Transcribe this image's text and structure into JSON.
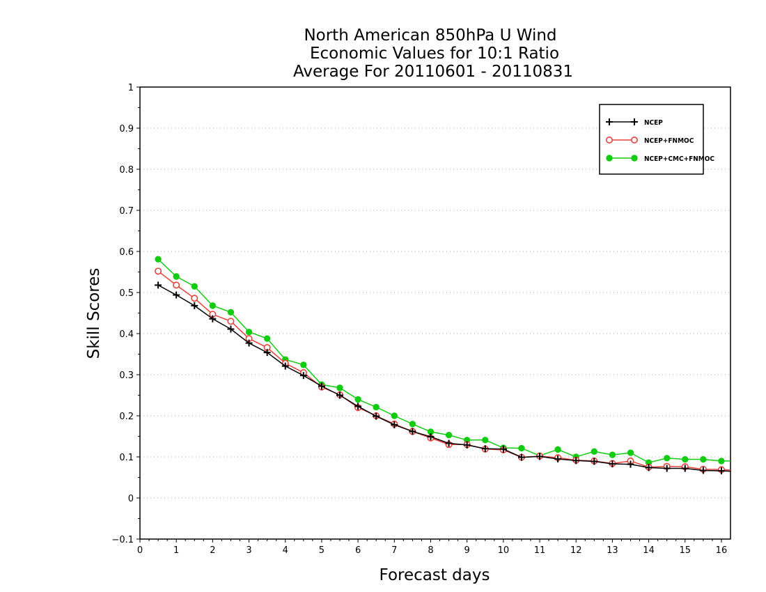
{
  "chart_data": {
    "type": "line",
    "title_lines": [
      "North American 850hPa U Wind",
      "Economic Values for 10:1 Ratio",
      "Average For 20110601 - 20110831"
    ],
    "xlabel": "Forecast days",
    "ylabel": "Skill Scores",
    "xlim": [
      0,
      16.25
    ],
    "ylim": [
      -0.1,
      1
    ],
    "x_ticks": [
      0,
      1,
      2,
      3,
      4,
      5,
      6,
      7,
      8,
      9,
      10,
      11,
      12,
      13,
      14,
      15,
      16
    ],
    "x_tick_labels": [
      "0",
      "1",
      "2",
      "3",
      "4",
      "5",
      "6",
      "7",
      "8",
      "9",
      "10",
      "11",
      "12",
      "13",
      "14",
      "15",
      "16"
    ],
    "y_ticks": [
      -0.1,
      0,
      0.1,
      0.2,
      0.3,
      0.4,
      0.5,
      0.6,
      0.7,
      0.8,
      0.9,
      1
    ],
    "y_tick_labels": [
      "−0.1",
      "0",
      "0.1",
      "0.2",
      "0.3",
      "0.4",
      "0.5",
      "0.6",
      "0.7",
      "0.8",
      "0.9",
      "1"
    ],
    "grid": true,
    "legend_position": "top-right",
    "x": [
      0.5,
      1,
      1.5,
      2,
      2.5,
      3,
      3.5,
      4,
      4.5,
      5,
      5.5,
      6,
      6.5,
      7,
      7.5,
      8,
      8.5,
      9,
      9.5,
      10,
      10.5,
      11,
      11.5,
      12,
      12.5,
      13,
      13.5,
      14,
      14.5,
      15,
      15.5,
      16,
      16.25
    ],
    "series": [
      {
        "name": "NCEP",
        "color": "#000000",
        "marker": "plus",
        "values": [
          0.518,
          0.494,
          0.468,
          0.436,
          0.411,
          0.377,
          0.354,
          0.321,
          0.298,
          0.272,
          0.25,
          0.223,
          0.199,
          0.178,
          0.162,
          0.149,
          0.133,
          0.129,
          0.12,
          0.119,
          0.099,
          0.101,
          0.095,
          0.091,
          0.089,
          0.083,
          0.082,
          0.074,
          0.072,
          0.072,
          0.067,
          0.066,
          0.065
        ]
      },
      {
        "name": "NCEP+FNMOC",
        "color": "#e8413c",
        "marker": "open-circle",
        "values": [
          0.552,
          0.518,
          0.486,
          0.447,
          0.43,
          0.388,
          0.366,
          0.328,
          0.305,
          0.27,
          0.251,
          0.22,
          0.2,
          0.18,
          0.162,
          0.146,
          0.13,
          0.13,
          0.119,
          0.117,
          0.099,
          0.102,
          0.098,
          0.092,
          0.09,
          0.084,
          0.09,
          0.075,
          0.077,
          0.076,
          0.07,
          0.069,
          0.068
        ]
      },
      {
        "name": "NCEP+CMC+FNMOC",
        "color": "#11cc11",
        "marker": "filled-circle",
        "values": [
          0.581,
          0.539,
          0.515,
          0.468,
          0.452,
          0.404,
          0.388,
          0.337,
          0.324,
          0.276,
          0.268,
          0.24,
          0.221,
          0.2,
          0.18,
          0.161,
          0.153,
          0.141,
          0.141,
          0.122,
          0.121,
          0.103,
          0.118,
          0.1,
          0.113,
          0.105,
          0.11,
          0.086,
          0.097,
          0.094,
          0.094,
          0.09,
          0.09
        ]
      }
    ]
  }
}
